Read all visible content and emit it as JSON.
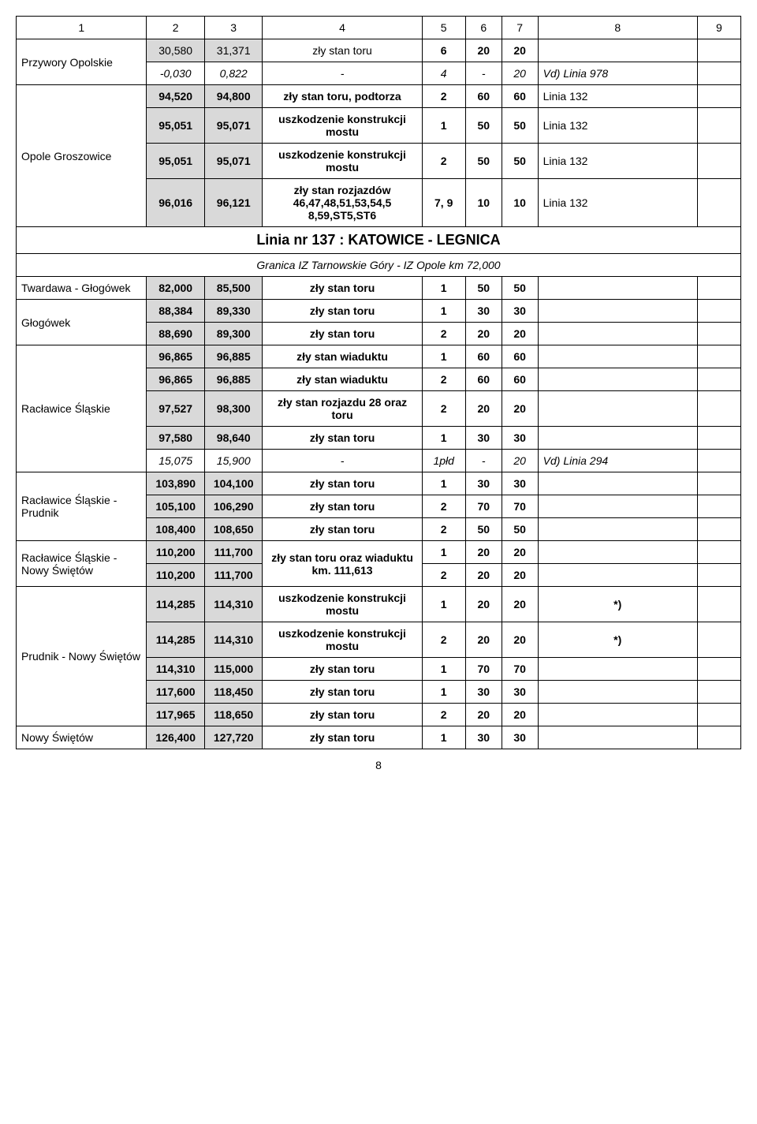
{
  "header_cols": [
    "1",
    "2",
    "3",
    "4",
    "5",
    "6",
    "7",
    "8",
    "9"
  ],
  "rows": [
    {
      "cells": [
        {
          "text": "Przywory Opolskie",
          "rowspan": 2,
          "class": "left"
        },
        {
          "text": "30,580",
          "class": "shaded"
        },
        {
          "text": "31,371",
          "class": "shaded"
        },
        {
          "text": "zły stan toru"
        },
        {
          "text": "6",
          "class": "bold"
        },
        {
          "text": "20",
          "class": "bold"
        },
        {
          "text": "20",
          "class": "bold"
        },
        {
          "text": ""
        },
        {
          "text": ""
        }
      ]
    },
    {
      "cells": [
        {
          "text": "-0,030",
          "class": "italic"
        },
        {
          "text": "0,822",
          "class": "italic"
        },
        {
          "text": "-",
          "class": "italic"
        },
        {
          "text": "4",
          "class": "italic"
        },
        {
          "text": "-",
          "class": "italic"
        },
        {
          "text": "20",
          "class": "italic"
        },
        {
          "text": "Vd) Linia 978",
          "class": "italic left"
        },
        {
          "text": ""
        }
      ]
    },
    {
      "cells": [
        {
          "text": "Opole Groszowice",
          "rowspan": 4,
          "class": "left"
        },
        {
          "text": "94,520",
          "class": "shaded bold"
        },
        {
          "text": "94,800",
          "class": "shaded bold"
        },
        {
          "text": "zły stan toru, podtorza",
          "class": "bold"
        },
        {
          "text": "2",
          "class": "bold"
        },
        {
          "text": "60",
          "class": "bold"
        },
        {
          "text": "60",
          "class": "bold"
        },
        {
          "text": "Linia 132",
          "class": "left"
        },
        {
          "text": ""
        }
      ]
    },
    {
      "cells": [
        {
          "text": "95,051",
          "class": "shaded bold"
        },
        {
          "text": "95,071",
          "class": "shaded bold"
        },
        {
          "text": "uszkodzenie konstrukcji mostu",
          "class": "bold"
        },
        {
          "text": "1",
          "class": "bold"
        },
        {
          "text": "50",
          "class": "bold"
        },
        {
          "text": "50",
          "class": "bold"
        },
        {
          "text": "Linia 132",
          "class": "left"
        },
        {
          "text": ""
        }
      ]
    },
    {
      "cells": [
        {
          "text": "95,051",
          "class": "shaded bold"
        },
        {
          "text": "95,071",
          "class": "shaded bold"
        },
        {
          "text": "uszkodzenie konstrukcji mostu",
          "class": "bold"
        },
        {
          "text": "2",
          "class": "bold"
        },
        {
          "text": "50",
          "class": "bold"
        },
        {
          "text": "50",
          "class": "bold"
        },
        {
          "text": "Linia 132",
          "class": "left"
        },
        {
          "text": ""
        }
      ]
    },
    {
      "cells": [
        {
          "text": "96,016",
          "class": "shaded bold"
        },
        {
          "text": "96,121",
          "class": "shaded bold"
        },
        {
          "text": "zły stan rozjazdów 46,47,48,51,53,54,5 8,59,ST5,ST6",
          "class": "bold"
        },
        {
          "text": "7, 9",
          "class": "bold"
        },
        {
          "text": "10",
          "class": "bold"
        },
        {
          "text": "10",
          "class": "bold"
        },
        {
          "text": "Linia 132",
          "class": "left"
        },
        {
          "text": ""
        }
      ]
    },
    {
      "cells": [
        {
          "text": "Linia nr 137 :  KATOWICE - LEGNICA",
          "colspan": 9,
          "class": "section-title"
        }
      ]
    },
    {
      "cells": [
        {
          "text": "Granica IZ Tarnowskie Góry - IZ Opole km 72,000",
          "colspan": 9,
          "class": "subsection"
        }
      ]
    },
    {
      "cells": [
        {
          "text": "Twardawa - Głogówek",
          "class": "left"
        },
        {
          "text": "82,000",
          "class": "shaded bold"
        },
        {
          "text": "85,500",
          "class": "shaded bold"
        },
        {
          "text": "zły stan toru",
          "class": "bold"
        },
        {
          "text": "1",
          "class": "bold"
        },
        {
          "text": "50",
          "class": "bold"
        },
        {
          "text": "50",
          "class": "bold"
        },
        {
          "text": ""
        },
        {
          "text": ""
        }
      ]
    },
    {
      "cells": [
        {
          "text": "Głogówek",
          "rowspan": 2,
          "class": "left"
        },
        {
          "text": "88,384",
          "class": "shaded bold"
        },
        {
          "text": "89,330",
          "class": "shaded bold"
        },
        {
          "text": "zły stan toru",
          "class": "bold"
        },
        {
          "text": "1",
          "class": "bold"
        },
        {
          "text": "30",
          "class": "bold"
        },
        {
          "text": "30",
          "class": "bold"
        },
        {
          "text": ""
        },
        {
          "text": ""
        }
      ]
    },
    {
      "cells": [
        {
          "text": "88,690",
          "class": "shaded bold"
        },
        {
          "text": "89,300",
          "class": "shaded bold"
        },
        {
          "text": "zły stan toru",
          "class": "bold"
        },
        {
          "text": "2",
          "class": "bold"
        },
        {
          "text": "20",
          "class": "bold"
        },
        {
          "text": "20",
          "class": "bold"
        },
        {
          "text": ""
        },
        {
          "text": ""
        }
      ]
    },
    {
      "cells": [
        {
          "text": "Racławice Śląskie",
          "rowspan": 5,
          "class": "left"
        },
        {
          "text": "96,865",
          "class": "shaded bold"
        },
        {
          "text": "96,885",
          "class": "shaded bold"
        },
        {
          "text": "zły stan wiaduktu",
          "class": "bold"
        },
        {
          "text": "1",
          "class": "bold"
        },
        {
          "text": "60",
          "class": "bold"
        },
        {
          "text": "60",
          "class": "bold"
        },
        {
          "text": ""
        },
        {
          "text": ""
        }
      ]
    },
    {
      "cells": [
        {
          "text": "96,865",
          "class": "shaded bold"
        },
        {
          "text": "96,885",
          "class": "shaded bold"
        },
        {
          "text": "zły stan wiaduktu",
          "class": "bold"
        },
        {
          "text": "2",
          "class": "bold"
        },
        {
          "text": "60",
          "class": "bold"
        },
        {
          "text": "60",
          "class": "bold"
        },
        {
          "text": ""
        },
        {
          "text": ""
        }
      ]
    },
    {
      "cells": [
        {
          "text": "97,527",
          "class": "shaded bold"
        },
        {
          "text": "98,300",
          "class": "shaded bold"
        },
        {
          "text": "zły stan rozjazdu 28 oraz toru",
          "class": "bold"
        },
        {
          "text": "2",
          "class": "bold"
        },
        {
          "text": "20",
          "class": "bold"
        },
        {
          "text": "20",
          "class": "bold"
        },
        {
          "text": ""
        },
        {
          "text": ""
        }
      ]
    },
    {
      "cells": [
        {
          "text": "97,580",
          "class": "shaded bold"
        },
        {
          "text": "98,640",
          "class": "shaded bold"
        },
        {
          "text": "zły stan toru",
          "class": "bold"
        },
        {
          "text": "1",
          "class": "bold"
        },
        {
          "text": "30",
          "class": "bold"
        },
        {
          "text": "30",
          "class": "bold"
        },
        {
          "text": ""
        },
        {
          "text": ""
        }
      ]
    },
    {
      "cells": [
        {
          "text": "15,075",
          "class": "italic"
        },
        {
          "text": "15,900",
          "class": "italic"
        },
        {
          "text": "-",
          "class": "italic"
        },
        {
          "text": "1płd",
          "class": "italic"
        },
        {
          "text": "-",
          "class": "italic"
        },
        {
          "text": "20",
          "class": "italic"
        },
        {
          "text": "Vd) Linia 294",
          "class": "italic left"
        },
        {
          "text": ""
        }
      ]
    },
    {
      "cells": [
        {
          "text": "Racławice Śląskie - Prudnik",
          "rowspan": 3,
          "class": "left"
        },
        {
          "text": "103,890",
          "class": "shaded bold"
        },
        {
          "text": "104,100",
          "class": "shaded bold"
        },
        {
          "text": "zły stan toru",
          "class": "bold"
        },
        {
          "text": "1",
          "class": "bold"
        },
        {
          "text": "30",
          "class": "bold"
        },
        {
          "text": "30",
          "class": "bold"
        },
        {
          "text": ""
        },
        {
          "text": ""
        }
      ]
    },
    {
      "cells": [
        {
          "text": "105,100",
          "class": "shaded bold"
        },
        {
          "text": "106,290",
          "class": "shaded bold"
        },
        {
          "text": "zły stan toru",
          "class": "bold"
        },
        {
          "text": "2",
          "class": "bold"
        },
        {
          "text": "70",
          "class": "bold"
        },
        {
          "text": "70",
          "class": "bold"
        },
        {
          "text": ""
        },
        {
          "text": ""
        }
      ]
    },
    {
      "cells": [
        {
          "text": "108,400",
          "class": "shaded bold"
        },
        {
          "text": "108,650",
          "class": "shaded bold"
        },
        {
          "text": "zły stan toru",
          "class": "bold"
        },
        {
          "text": "2",
          "class": "bold"
        },
        {
          "text": "50",
          "class": "bold"
        },
        {
          "text": "50",
          "class": "bold"
        },
        {
          "text": ""
        },
        {
          "text": ""
        }
      ]
    },
    {
      "cells": [
        {
          "text": "Racławice Śląskie - Nowy Świętów",
          "rowspan": 2,
          "class": "left"
        },
        {
          "text": "110,200",
          "class": "shaded bold"
        },
        {
          "text": "111,700",
          "class": "shaded bold"
        },
        {
          "text": "zły stan toru oraz wiaduktu km. 111,613",
          "rowspan": 2,
          "class": "bold"
        },
        {
          "text": "1",
          "class": "bold"
        },
        {
          "text": "20",
          "class": "bold"
        },
        {
          "text": "20",
          "class": "bold"
        },
        {
          "text": ""
        },
        {
          "text": ""
        }
      ]
    },
    {
      "cells": [
        {
          "text": "110,200",
          "class": "shaded bold"
        },
        {
          "text": "111,700",
          "class": "shaded bold"
        },
        {
          "text": "2",
          "class": "bold"
        },
        {
          "text": "20",
          "class": "bold"
        },
        {
          "text": "20",
          "class": "bold"
        },
        {
          "text": ""
        },
        {
          "text": ""
        }
      ]
    },
    {
      "cells": [
        {
          "text": "Prudnik - Nowy Świętów",
          "rowspan": 5,
          "class": "left"
        },
        {
          "text": "114,285",
          "class": "shaded bold"
        },
        {
          "text": "114,310",
          "class": "shaded bold"
        },
        {
          "text": "uszkodzenie konstrukcji  mostu",
          "class": "bold"
        },
        {
          "text": "1",
          "class": "bold"
        },
        {
          "text": "20",
          "class": "bold"
        },
        {
          "text": "20",
          "class": "bold"
        },
        {
          "text": "*)",
          "class": "bold"
        },
        {
          "text": ""
        }
      ]
    },
    {
      "cells": [
        {
          "text": "114,285",
          "class": "shaded bold"
        },
        {
          "text": "114,310",
          "class": "shaded bold"
        },
        {
          "text": "uszkodzenie konstrukcji  mostu",
          "class": "bold"
        },
        {
          "text": "2",
          "class": "bold"
        },
        {
          "text": "20",
          "class": "bold"
        },
        {
          "text": "20",
          "class": "bold"
        },
        {
          "text": "*)",
          "class": "bold"
        },
        {
          "text": ""
        }
      ]
    },
    {
      "cells": [
        {
          "text": "114,310",
          "class": "shaded bold"
        },
        {
          "text": "115,000",
          "class": "shaded bold"
        },
        {
          "text": "zły stan toru",
          "class": "bold"
        },
        {
          "text": "1",
          "class": "bold"
        },
        {
          "text": "70",
          "class": "bold"
        },
        {
          "text": "70",
          "class": "bold"
        },
        {
          "text": ""
        },
        {
          "text": ""
        }
      ]
    },
    {
      "cells": [
        {
          "text": "117,600",
          "class": "shaded bold"
        },
        {
          "text": "118,450",
          "class": "shaded bold"
        },
        {
          "text": "zły stan toru",
          "class": "bold"
        },
        {
          "text": "1",
          "class": "bold"
        },
        {
          "text": "30",
          "class": "bold"
        },
        {
          "text": "30",
          "class": "bold"
        },
        {
          "text": ""
        },
        {
          "text": ""
        }
      ]
    },
    {
      "cells": [
        {
          "text": "117,965",
          "class": "shaded bold"
        },
        {
          "text": "118,650",
          "class": "shaded bold"
        },
        {
          "text": "zły stan toru",
          "class": "bold"
        },
        {
          "text": "2",
          "class": "bold"
        },
        {
          "text": "20",
          "class": "bold"
        },
        {
          "text": "20",
          "class": "bold"
        },
        {
          "text": ""
        },
        {
          "text": ""
        }
      ]
    },
    {
      "cells": [
        {
          "text": "Nowy Świętów",
          "class": "left"
        },
        {
          "text": "126,400",
          "class": "shaded bold"
        },
        {
          "text": "127,720",
          "class": "shaded bold"
        },
        {
          "text": "zły stan toru",
          "class": "bold"
        },
        {
          "text": "1",
          "class": "bold"
        },
        {
          "text": "30",
          "class": "bold"
        },
        {
          "text": "30",
          "class": "bold"
        },
        {
          "text": ""
        },
        {
          "text": ""
        }
      ]
    }
  ],
  "page_number": "8"
}
